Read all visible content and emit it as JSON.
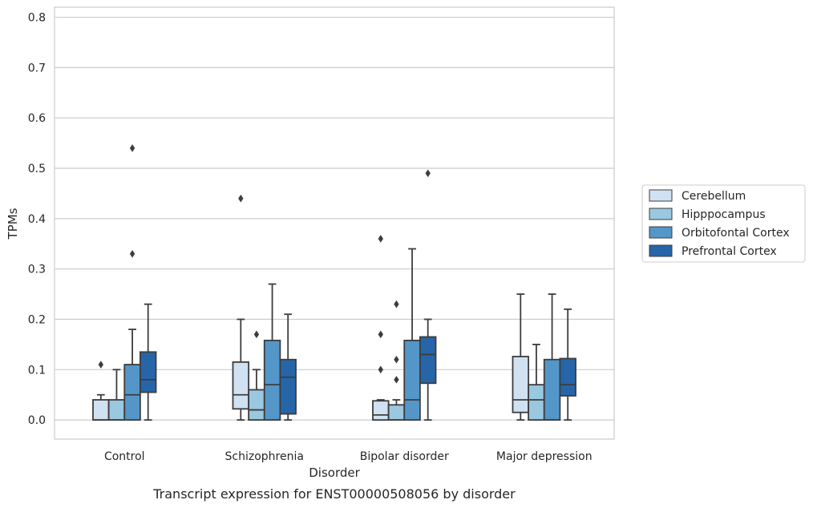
{
  "caption": "Transcript expression for ENST00000508056 by disorder",
  "chart_data": {
    "type": "box",
    "xlabel": "Disorder",
    "ylabel": "TPMs",
    "ylim": [
      -0.038,
      0.82
    ],
    "yticks": [
      "0.0",
      "0.1",
      "0.2",
      "0.3",
      "0.4",
      "0.5",
      "0.6",
      "0.7",
      "0.8"
    ],
    "ytick_values": [
      0,
      0.1,
      0.2,
      0.3,
      0.4,
      0.5,
      0.6,
      0.7,
      0.8
    ],
    "grid": "horizontal",
    "legend_position": "right",
    "categories": [
      "Control",
      "Schizophrenia",
      "Bipolar disorder",
      "Major depression"
    ],
    "series": [
      {
        "name": "Cerebellum",
        "color": "#d0e1f2",
        "boxes": [
          {
            "whislo": 0.0,
            "q1": 0.0,
            "med": 0.0,
            "q3": 0.04,
            "whishi": 0.05,
            "fliers": [
              0.11
            ]
          },
          {
            "whislo": 0.0,
            "q1": 0.022,
            "med": 0.05,
            "q3": 0.115,
            "whishi": 0.2,
            "fliers": [
              0.44
            ]
          },
          {
            "whislo": 0.0,
            "q1": 0.0,
            "med": 0.01,
            "q3": 0.038,
            "whishi": 0.04,
            "fliers": [
              0.1,
              0.17,
              0.36
            ]
          },
          {
            "whislo": 0.0,
            "q1": 0.015,
            "med": 0.04,
            "q3": 0.126,
            "whishi": 0.25,
            "fliers": []
          }
        ]
      },
      {
        "name": "Hipppocampus",
        "color": "#9ac8e0",
        "boxes": [
          {
            "whislo": 0.0,
            "q1": 0.0,
            "med": 0.0,
            "q3": 0.04,
            "whishi": 0.1,
            "fliers": []
          },
          {
            "whislo": 0.0,
            "q1": 0.0,
            "med": 0.02,
            "q3": 0.06,
            "whishi": 0.1,
            "fliers": [
              0.17
            ]
          },
          {
            "whislo": 0.0,
            "q1": 0.0,
            "med": 0.0,
            "q3": 0.03,
            "whishi": 0.04,
            "fliers": [
              0.08,
              0.12,
              0.23
            ]
          },
          {
            "whislo": 0.0,
            "q1": 0.0,
            "med": 0.04,
            "q3": 0.07,
            "whishi": 0.15,
            "fliers": []
          }
        ]
      },
      {
        "name": "Orbitofontal Cortex",
        "color": "#5596c8",
        "boxes": [
          {
            "whislo": 0.0,
            "q1": 0.0,
            "med": 0.05,
            "q3": 0.11,
            "whishi": 0.18,
            "fliers": [
              0.33,
              0.54
            ]
          },
          {
            "whislo": 0.0,
            "q1": 0.0,
            "med": 0.07,
            "q3": 0.158,
            "whishi": 0.27,
            "fliers": []
          },
          {
            "whislo": 0.0,
            "q1": 0.0,
            "med": 0.04,
            "q3": 0.158,
            "whishi": 0.34,
            "fliers": []
          },
          {
            "whislo": 0.0,
            "q1": 0.0,
            "med": 0.0,
            "q3": 0.12,
            "whishi": 0.25,
            "fliers": []
          }
        ]
      },
      {
        "name": "Prefrontal Cortex",
        "color": "#2765a9",
        "boxes": [
          {
            "whislo": 0.0,
            "q1": 0.055,
            "med": 0.08,
            "q3": 0.135,
            "whishi": 0.23,
            "fliers": []
          },
          {
            "whislo": 0.0,
            "q1": 0.012,
            "med": 0.085,
            "q3": 0.12,
            "whishi": 0.21,
            "fliers": []
          },
          {
            "whislo": 0.0,
            "q1": 0.073,
            "med": 0.13,
            "q3": 0.165,
            "whishi": 0.2,
            "fliers": [
              0.49
            ]
          },
          {
            "whislo": 0.0,
            "q1": 0.048,
            "med": 0.07,
            "q3": 0.122,
            "whishi": 0.22,
            "fliers": []
          }
        ]
      }
    ]
  }
}
